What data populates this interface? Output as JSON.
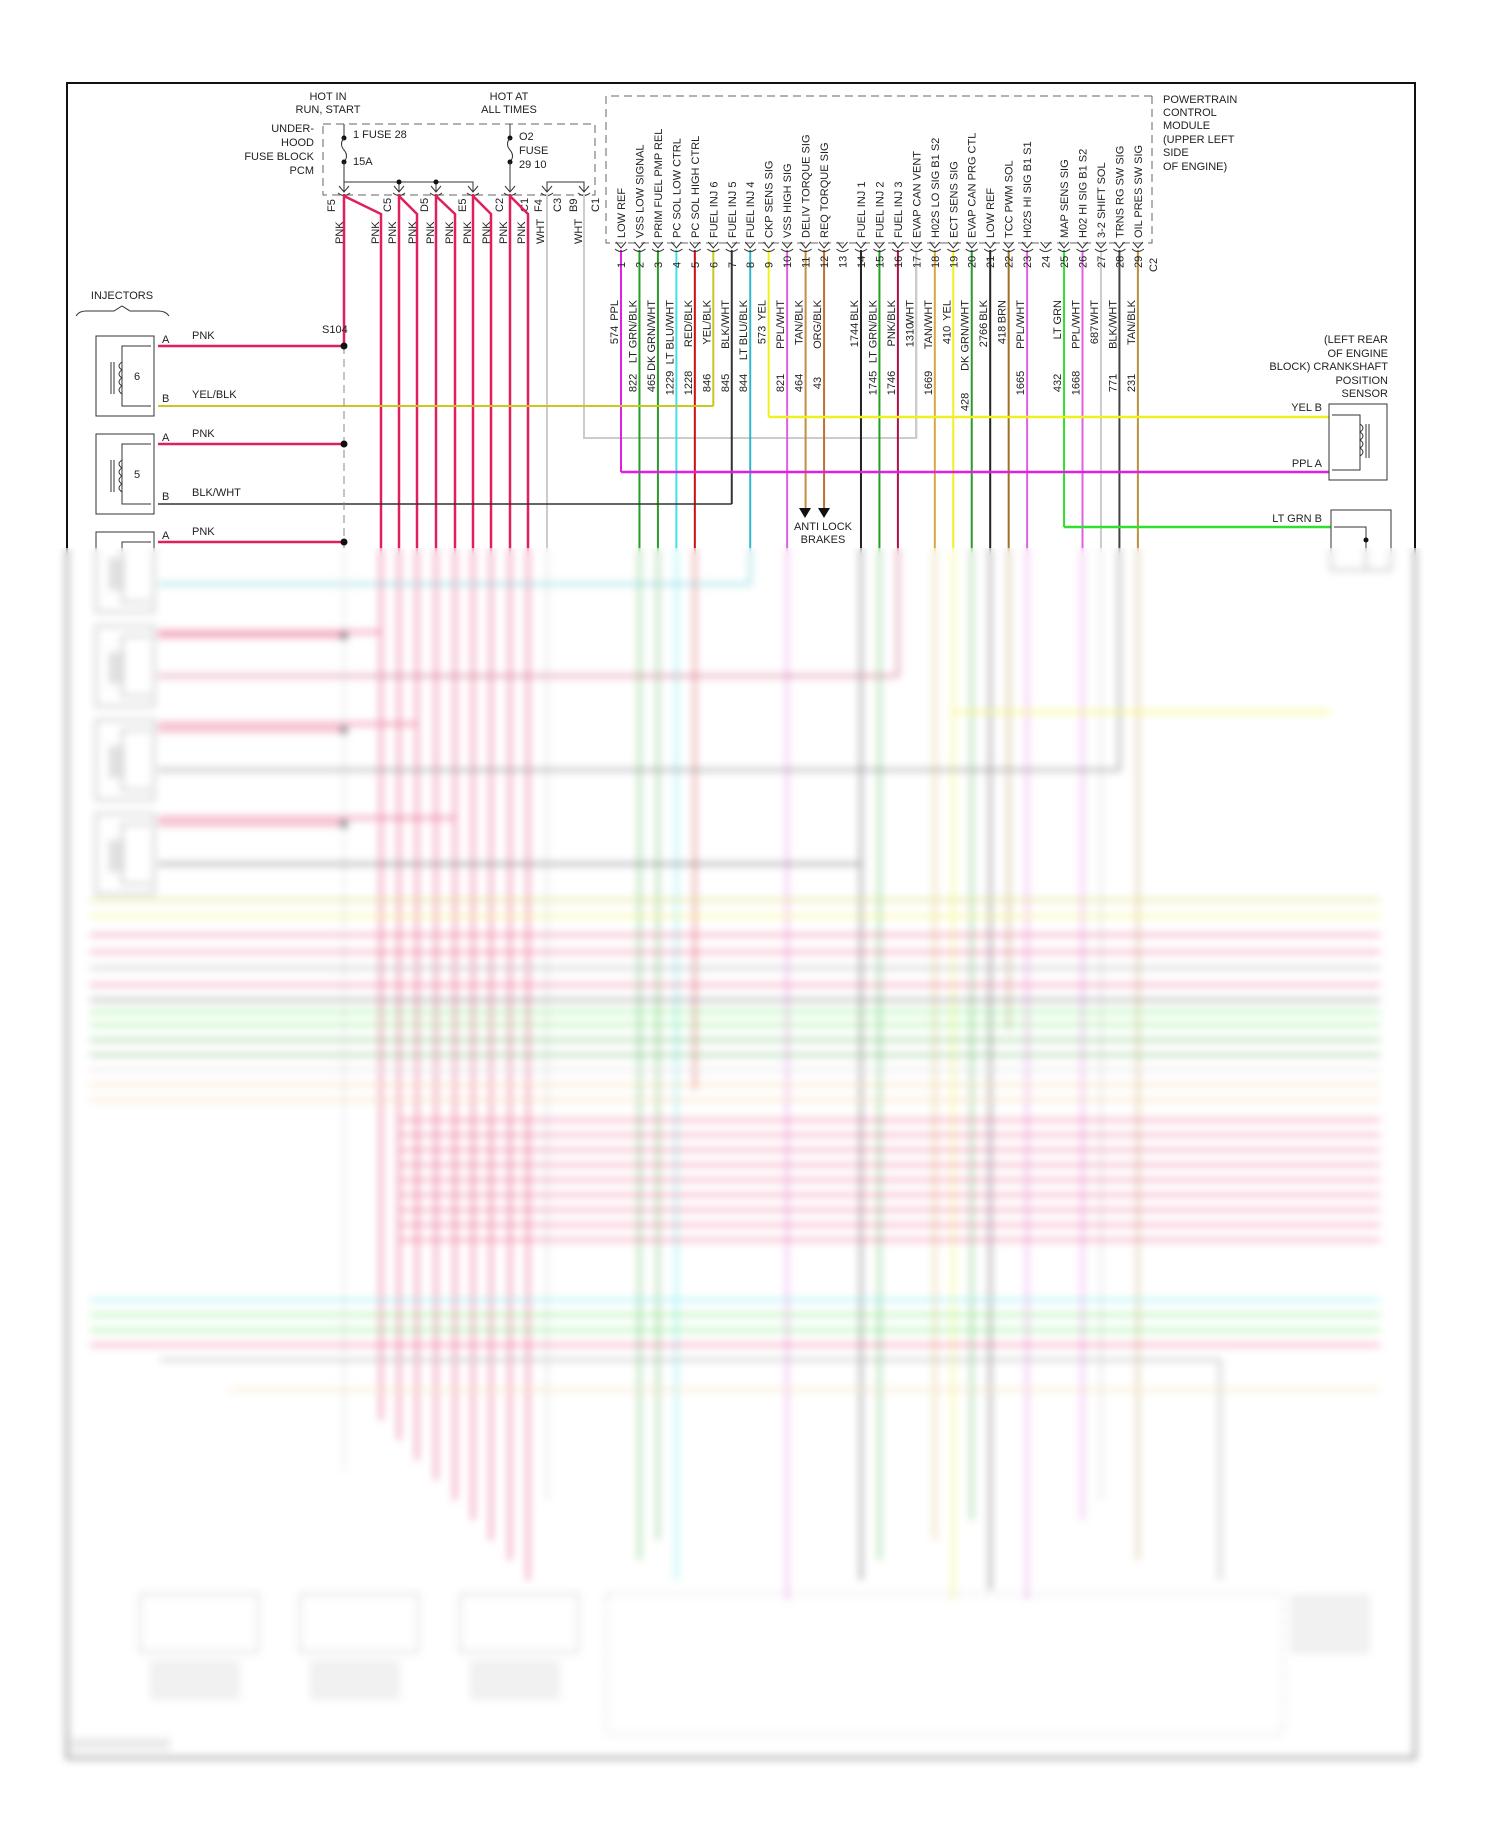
{
  "fuse_block": {
    "hot_run_start": [
      "HOT IN",
      "RUN, START"
    ],
    "hot_all_times": [
      "HOT AT",
      "ALL TIMES"
    ],
    "name_lines": [
      "UNDER-",
      "HOOD",
      "FUSE BLOCK",
      "PCM"
    ],
    "fuse1": [
      "1 FUSE 28",
      "15A"
    ],
    "fuse2": [
      "O2",
      "FUSE",
      "29 10"
    ],
    "pins": [
      "F5",
      "C5",
      "D5",
      "E5",
      "C2",
      "C1",
      "F4",
      "C3",
      "B9",
      "C1"
    ],
    "wire_labels": [
      "PNK",
      "PNK",
      "PNK",
      "PNK",
      "PNK",
      "PNK",
      "PNK",
      "PNK",
      "PNK",
      "PNK",
      "WHT",
      "WHT"
    ]
  },
  "pcm": {
    "name_lines": [
      "POWERTRAIN",
      "CONTROL",
      "MODULE",
      "(UPPER LEFT",
      "SIDE",
      "OF ENGINE)"
    ],
    "connector": "C2",
    "pins": [
      {
        "pin": "1",
        "function": "LOW REF",
        "wire": "PPL",
        "circuit": "574",
        "color": "#e020e0"
      },
      {
        "pin": "2",
        "function": "VSS LOW SIGNAL",
        "wire": "LT GRN/BLK",
        "circuit": "822",
        "color": "#20a020"
      },
      {
        "pin": "3",
        "function": "PRIM FUEL PMP REL",
        "wire": "DK GRN/WHT",
        "circuit": "465",
        "color": "#2a9a2a"
      },
      {
        "pin": "4",
        "function": "PC SOL LOW CTRL",
        "wire": "LT BLU/WHT",
        "circuit": "1229",
        "color": "#40e0e8"
      },
      {
        "pin": "5",
        "function": "PC SOL HIGH CTRL",
        "wire": "RED/BLK",
        "circuit": "1228",
        "color": "#cc1010"
      },
      {
        "pin": "6",
        "function": "FUEL INJ 6",
        "wire": "YEL/BLK",
        "circuit": "846",
        "color": "#c8c820"
      },
      {
        "pin": "7",
        "function": "FUEL INJ 5",
        "wire": "BLK/WHT",
        "circuit": "845",
        "color": "#333333"
      },
      {
        "pin": "8",
        "function": "FUEL INJ 4",
        "wire": "LT BLU/BLK",
        "circuit": "844",
        "color": "#30b8c8"
      },
      {
        "pin": "9",
        "function": "CKP SENS SIG",
        "wire": "YEL",
        "circuit": "573",
        "color": "#f0f020"
      },
      {
        "pin": "10",
        "function": "VSS HIGH SIG",
        "wire": "PPL/WHT",
        "circuit": "821",
        "color": "#e060e0"
      },
      {
        "pin": "11",
        "function": "DELIV TORQUE SIG",
        "wire": "TAN/BLK",
        "circuit": "464",
        "color": "#c09040"
      },
      {
        "pin": "12",
        "function": "REQ TORQUE SIG",
        "wire": "ORG/BLK",
        "circuit": "43",
        "color": "#c07030"
      },
      {
        "pin": "13",
        "function": "",
        "wire": "",
        "circuit": "",
        "color": ""
      },
      {
        "pin": "14",
        "function": "FUEL INJ 1",
        "wire": "BLK",
        "circuit": "1744",
        "color": "#222222"
      },
      {
        "pin": "15",
        "function": "FUEL INJ 2",
        "wire": "LT GRN/BLK",
        "circuit": "1745",
        "color": "#20a020"
      },
      {
        "pin": "16",
        "function": "FUEL INJ 3",
        "wire": "PNK/BLK",
        "circuit": "1746",
        "color": "#b01040"
      },
      {
        "pin": "17",
        "function": "EVAP CAN VENT",
        "wire": "WHT",
        "circuit": "1310",
        "color": "#cccccc"
      },
      {
        "pin": "18",
        "function": "H02S LO SIG B1 S2",
        "wire": "TAN/WHT",
        "circuit": "1669",
        "color": "#d8a840"
      },
      {
        "pin": "19",
        "function": "ECT SENS SIG",
        "wire": "YEL",
        "circuit": "410",
        "color": "#f0f020"
      },
      {
        "pin": "20",
        "function": "EVAP CAN PRG CTL",
        "wire": "DK GRN/WHT",
        "circuit": "428",
        "color": "#2a9a2a"
      },
      {
        "pin": "21",
        "function": "LOW REF",
        "wire": "BLK",
        "circuit": "2766",
        "color": "#222222"
      },
      {
        "pin": "22",
        "function": "TCC PWM SOL",
        "wire": "BRN",
        "circuit": "418",
        "color": "#a07020"
      },
      {
        "pin": "23",
        "function": "H02S HI SIG B1 S1",
        "wire": "PPL/WHT",
        "circuit": "1665",
        "color": "#e060e0"
      },
      {
        "pin": "24",
        "function": "",
        "wire": "",
        "circuit": "",
        "color": ""
      },
      {
        "pin": "25",
        "function": "MAP SENS SIG",
        "wire": "LT GRN",
        "circuit": "432",
        "color": "#30e030"
      },
      {
        "pin": "26",
        "function": "H02 HI SIG B1 S2",
        "wire": "PPL/WHT",
        "circuit": "1668",
        "color": "#e060e0"
      },
      {
        "pin": "27",
        "function": "3-2 SHIFT SOL",
        "wire": "WHT",
        "circuit": "687",
        "color": "#cccccc"
      },
      {
        "pin": "28",
        "function": "TRNS RG SW SIG",
        "wire": "BLK/WHT",
        "circuit": "771",
        "color": "#444444"
      },
      {
        "pin": "29",
        "function": "OIL PRES SW SIG",
        "wire": "TAN/BLK",
        "circuit": "231",
        "color": "#b89040"
      }
    ]
  },
  "injectors": {
    "title": "INJECTORS",
    "splice": "S104",
    "items": [
      {
        "number": "6",
        "pin_a": "A",
        "a_wire": "PNK",
        "pin_b": "B",
        "b_wire": "YEL/BLK"
      },
      {
        "number": "5",
        "pin_a": "A",
        "a_wire": "PNK",
        "pin_b": "B",
        "b_wire": "BLK/WHT"
      },
      {
        "number": "",
        "pin_a": "A",
        "a_wire": "PNK",
        "pin_b": "",
        "b_wire": ""
      }
    ]
  },
  "ckp_sensor": {
    "name_lines": [
      "(LEFT REAR",
      "OF ENGINE",
      "BLOCK) CRANKSHAFT",
      "POSITION",
      "SENSOR"
    ],
    "pin_b": "YEL  B",
    "pin_a": "PPL  A"
  },
  "lower_sensor": {
    "pin_b": "LT GRN   B"
  },
  "abs": [
    "ANTI LOCK",
    "BRAKES"
  ],
  "colors": {
    "pnk": "#e0205a",
    "frame": "#111111"
  }
}
